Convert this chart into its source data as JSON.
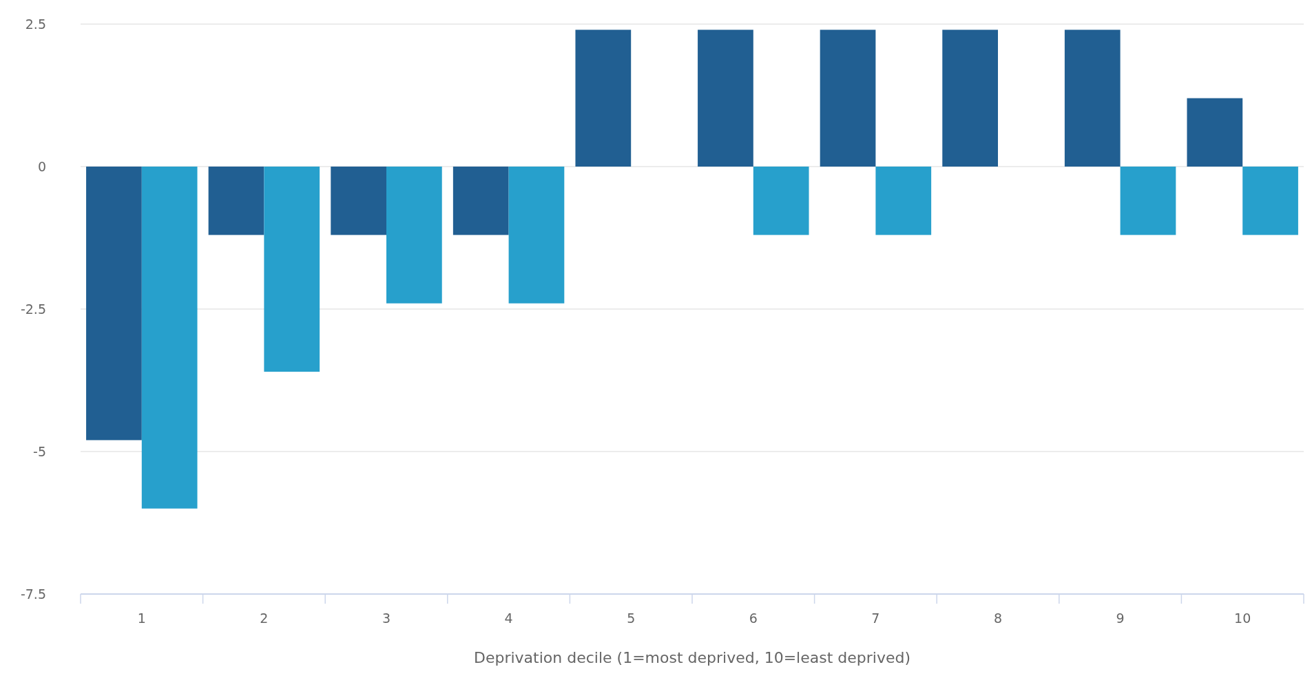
{
  "chart_data": {
    "type": "bar",
    "xlabel": "Deprivation decile (1=most deprived, 10=least deprived)",
    "categories": [
      "1",
      "2",
      "3",
      "4",
      "5",
      "6",
      "7",
      "8",
      "9",
      "10"
    ],
    "series": [
      {
        "color": "#215f92",
        "values": [
          -4.8,
          -1.2,
          -1.2,
          -1.2,
          2.4,
          2.4,
          2.4,
          2.4,
          2.4,
          1.2
        ]
      },
      {
        "color": "#27a0cc",
        "values": [
          -6.0,
          -3.6,
          -2.4,
          -2.4,
          0,
          -1.2,
          -1.2,
          0,
          -1.2,
          -1.2
        ]
      }
    ],
    "ylim": [
      -7.5,
      2.5
    ],
    "yticks": [
      -7.5,
      -5,
      -2.5,
      0,
      2.5
    ],
    "grid": "y"
  }
}
